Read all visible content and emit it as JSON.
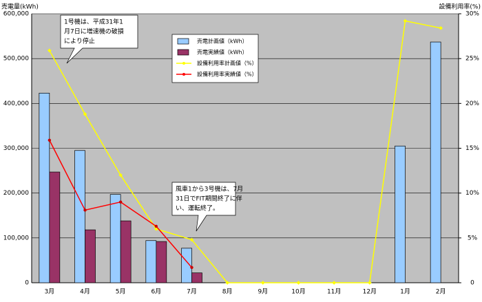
{
  "chart_data": {
    "type": "bar",
    "y_axis_label": "売電量(kWh)",
    "y2_axis_label": "設備利用率(%)",
    "categories": [
      "3月",
      "4月",
      "5月",
      "6月",
      "7月",
      "8月",
      "9月",
      "10月",
      "11月",
      "12月",
      "1月",
      "2月"
    ],
    "series": [
      {
        "name": "売電計画値（kWh）",
        "type": "bar",
        "color": "#99ccff",
        "values": [
          423000,
          295000,
          197000,
          94000,
          77000,
          0,
          0,
          0,
          0,
          0,
          305000,
          537000
        ]
      },
      {
        "name": "売電実績値（kWh）",
        "type": "bar",
        "color": "#993366",
        "values": [
          247000,
          118000,
          138000,
          92000,
          22000,
          null,
          null,
          null,
          null,
          null,
          null,
          null
        ]
      },
      {
        "name": "設備利用率計画値（%）",
        "type": "line",
        "axis": "y2",
        "color": "#ffff00",
        "values": [
          25.9,
          18.8,
          12.0,
          6.0,
          4.8,
          0,
          0,
          0,
          0,
          0,
          29.2,
          28.4
        ]
      },
      {
        "name": "設備利用率実績値（%）",
        "type": "line",
        "axis": "y2",
        "color": "#ff0000",
        "values": [
          15.9,
          8.1,
          9.0,
          6.3,
          1.7,
          null,
          null,
          null,
          null,
          null,
          null,
          null
        ]
      }
    ],
    "ylim": [
      0,
      600000
    ],
    "yticks": [
      0,
      {
        "value": 100000,
        "label": "100,000"
      },
      {
        "value": 200000,
        "label": "200,000"
      },
      {
        "value": 300000,
        "label": "300,000"
      },
      {
        "value": 400000,
        "label": "400,000"
      },
      {
        "value": 500000,
        "label": "500,000"
      },
      {
        "value": 600000,
        "label": "600,000"
      }
    ],
    "y2lim": [
      0,
      30
    ],
    "y2ticks": [
      0,
      {
        "value": 5,
        "label": "5%"
      },
      {
        "value": 10,
        "label": "10%"
      },
      {
        "value": 15,
        "label": "15%"
      },
      {
        "value": 20,
        "label": "20%"
      },
      {
        "value": 25,
        "label": "25%"
      },
      {
        "value": 30,
        "label": "30%"
      }
    ],
    "grid": true,
    "annotations": [
      {
        "lines": [
          "1号機は、平成31年1",
          "月7日に増速機の破損",
          "により停止"
        ]
      },
      {
        "lines": [
          "風車1から3号機は、7月",
          "31日でFIT期間終了に伴",
          "い、運転終了。"
        ]
      }
    ]
  }
}
